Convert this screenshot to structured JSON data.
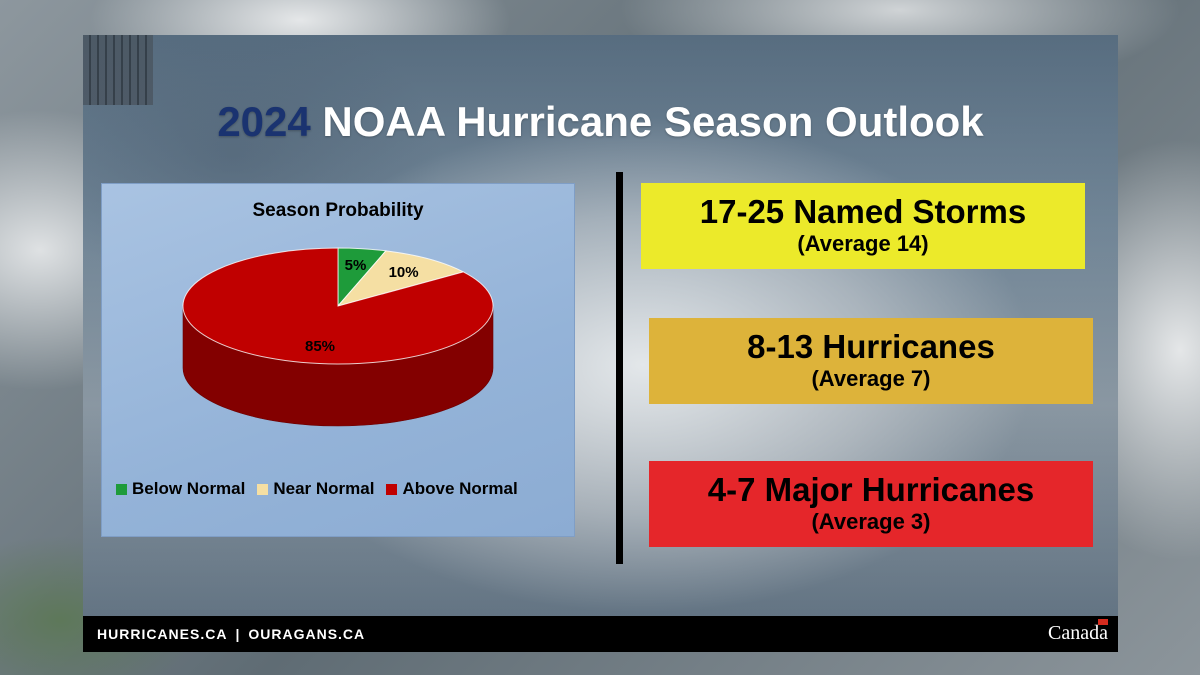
{
  "title": {
    "year": "2024",
    "rest": " NOAA Hurricane Season Outlook"
  },
  "chart_data": {
    "type": "pie",
    "title": "Season Probability",
    "categories": [
      "Below Normal",
      "Near Normal",
      "Above Normal"
    ],
    "values": [
      5,
      10,
      85
    ],
    "labels": [
      "5%",
      "10%",
      "85%"
    ],
    "colors": [
      "#1e9b3a",
      "#f5dfa3",
      "#c00000"
    ],
    "legend_position": "bottom"
  },
  "outlook": [
    {
      "main": "17-25 Named Storms",
      "sub": "(Average 14)",
      "color": "#ecea2a"
    },
    {
      "main": "8-13 Hurricanes",
      "sub": "(Average 7)",
      "color": "#ddb33a"
    },
    {
      "main": "4-7 Major Hurricanes",
      "sub": "(Average 3)",
      "color": "#e5262a"
    }
  ],
  "footer": {
    "link1": "HURRICANES.CA",
    "separator": "|",
    "link2": "OURAGANS.CA",
    "wordmark": "Canada"
  }
}
